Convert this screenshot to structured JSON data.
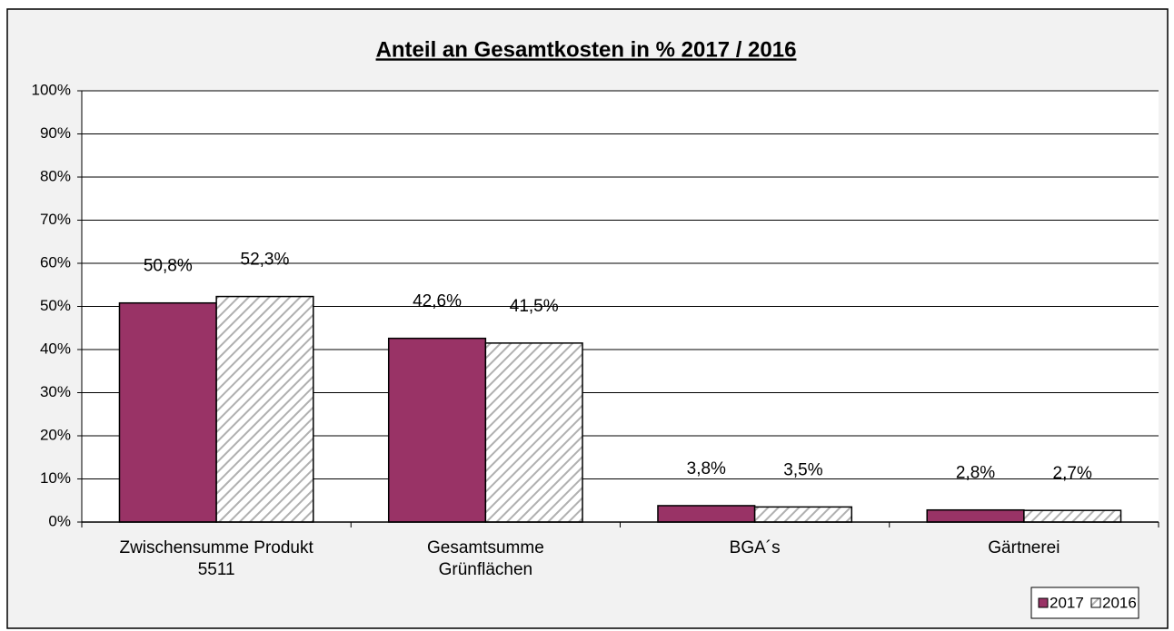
{
  "chart_data": {
    "type": "bar",
    "title": "Anteil an Gesamtkosten in % 2017 / 2016",
    "categories": [
      "Zwischensumme Produkt\n5511",
      "Gesamtsumme\nGrünflächen",
      "BGA´s",
      "Gärtnerei"
    ],
    "series": [
      {
        "name": "2017",
        "color": "#993366",
        "values": [
          50.8,
          42.6,
          3.8,
          2.8
        ],
        "value_labels": [
          "50,8%",
          "42,6%",
          "3,8%",
          "2,8%"
        ]
      },
      {
        "name": "2016",
        "color": "#ffffff",
        "pattern": "diagonal",
        "values": [
          52.3,
          41.5,
          3.5,
          2.7
        ],
        "value_labels": [
          "52,3%",
          "41,5%",
          "3,5%",
          "2,7%"
        ]
      }
    ],
    "ylim": [
      0,
      100
    ],
    "yticks": [
      {
        "value": 0,
        "label": "0%"
      },
      {
        "value": 10,
        "label": "10%"
      },
      {
        "value": 20,
        "label": "20%"
      },
      {
        "value": 30,
        "label": "30%"
      },
      {
        "value": 40,
        "label": "40%"
      },
      {
        "value": 50,
        "label": "50%"
      },
      {
        "value": 60,
        "label": "60%"
      },
      {
        "value": 70,
        "label": "70%"
      },
      {
        "value": 80,
        "label": "80%"
      },
      {
        "value": 90,
        "label": "90%"
      },
      {
        "value": 100,
        "label": "100%"
      }
    ],
    "grid": true,
    "legend": "lower right"
  }
}
